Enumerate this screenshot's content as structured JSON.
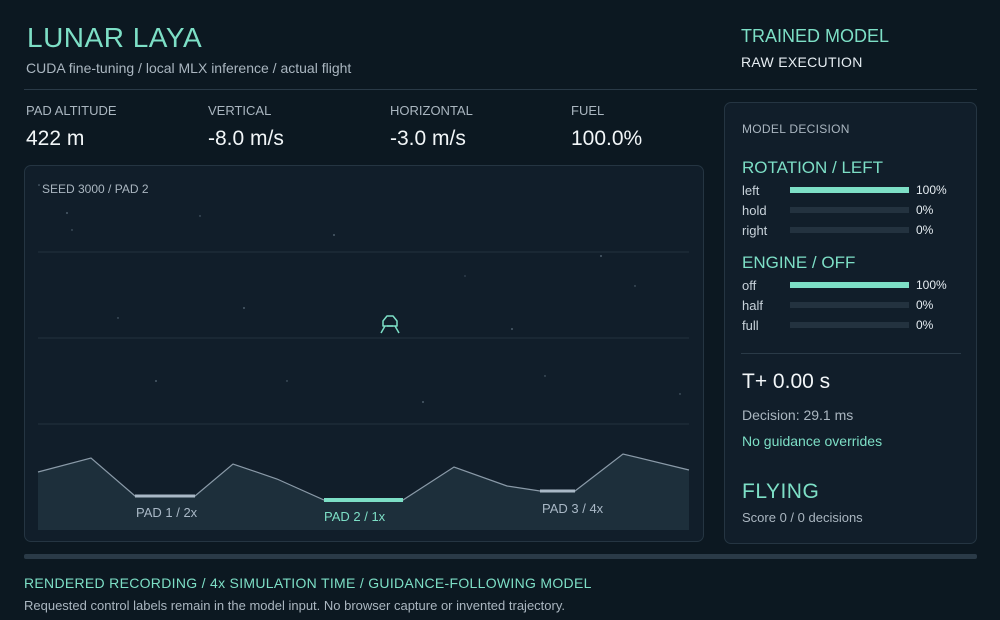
{
  "header": {
    "title": "LUNAR LAYA",
    "subtitle": "CUDA fine-tuning / local MLX inference / actual flight",
    "model_title": "TRAINED MODEL",
    "model_mode": "RAW EXECUTION"
  },
  "stats": [
    {
      "label": "PAD ALTITUDE",
      "value": "422 m"
    },
    {
      "label": "VERTICAL",
      "value": "-8.0 m/s"
    },
    {
      "label": "HORIZONTAL",
      "value": "-3.0 m/s"
    },
    {
      "label": "FUEL",
      "value": "100.0%"
    }
  ],
  "viewport": {
    "seed_label": "SEED 3000 / PAD 2",
    "pads": [
      {
        "label": "PAD 1 / 2x",
        "active": false
      },
      {
        "label": "PAD 2 / 1x",
        "active": true
      },
      {
        "label": "PAD 3 / 4x",
        "active": false
      }
    ]
  },
  "decision_panel": {
    "heading": "MODEL DECISION",
    "rotation": {
      "title": "ROTATION / LEFT",
      "options": [
        {
          "label": "left",
          "value": 1.0,
          "text": "100%"
        },
        {
          "label": "hold",
          "value": 0.0,
          "text": "0%"
        },
        {
          "label": "right",
          "value": 0.0,
          "text": "0%"
        }
      ]
    },
    "engine": {
      "title": "ENGINE / OFF",
      "options": [
        {
          "label": "off",
          "value": 1.0,
          "text": "100%"
        },
        {
          "label": "half",
          "value": 0.0,
          "text": "0%"
        },
        {
          "label": "full",
          "value": 0.0,
          "text": "0%"
        }
      ]
    },
    "clock": "T+ 0.00 s",
    "decision_time": "Decision: 29.1 ms",
    "overrides": "No guidance overrides",
    "status": "FLYING",
    "score": "Score 0 / 0 decisions"
  },
  "progress": {
    "value": 0.0
  },
  "footer": {
    "title": "RENDERED RECORDING / 4x SIMULATION TIME / GUIDANCE-FOLLOWING MODEL",
    "note": "Requested control labels remain in the model input. No browser capture or invented trajectory."
  },
  "colors": {
    "accent": "#7ddfc6",
    "background": "#0c1821",
    "panel": "#111e2a",
    "pad_inactive": "#a9b8c6"
  },
  "icons": {
    "lander": "lander-icon"
  }
}
